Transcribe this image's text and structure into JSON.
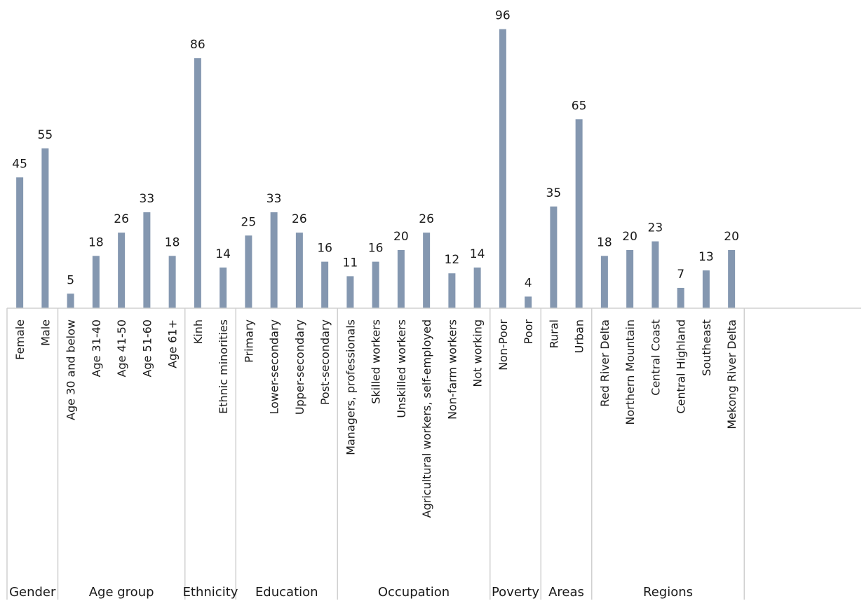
{
  "chart_data": {
    "type": "bar",
    "bar_color": "#8497b0",
    "groups": [
      {
        "name": "Gender",
        "categories": [
          "Female",
          "Male"
        ],
        "values": [
          45,
          55
        ]
      },
      {
        "name": "Age group",
        "categories": [
          "Age 30 and below",
          "Age 31-40",
          "Age 41-50",
          "Age 51-60",
          "Age 61+"
        ],
        "values": [
          5,
          18,
          26,
          33,
          18
        ]
      },
      {
        "name": "Ethnicity",
        "categories": [
          "Kinh",
          "Ethnic minorities"
        ],
        "values": [
          86,
          14
        ]
      },
      {
        "name": "Education",
        "categories": [
          "Primary",
          "Lower-secondary",
          "Upper-secondary",
          "Post-secondary"
        ],
        "values": [
          25,
          33,
          26,
          16
        ]
      },
      {
        "name": "Occupation",
        "categories": [
          "Managers, professionals",
          "Skilled workers",
          "Unskilled workers",
          "Agricultural workers, self-employed",
          "Non-farm workers",
          "Not working"
        ],
        "values": [
          11,
          16,
          20,
          26,
          12,
          14
        ]
      },
      {
        "name": "Poverty",
        "categories": [
          "Non-Poor",
          "Poor"
        ],
        "values": [
          96,
          4
        ]
      },
      {
        "name": "Areas",
        "categories": [
          "Rural",
          "Urban"
        ],
        "values": [
          35,
          65
        ]
      },
      {
        "name": "Regions",
        "categories": [
          "Red River Delta",
          "Northern Mountain",
          "Central Coast",
          "Central Highland",
          "Southeast",
          "Mekong River Delta"
        ],
        "values": [
          18,
          20,
          23,
          7,
          13,
          20
        ]
      }
    ],
    "ylim": [
      0,
      100
    ],
    "data_labels": true,
    "grid": false
  }
}
